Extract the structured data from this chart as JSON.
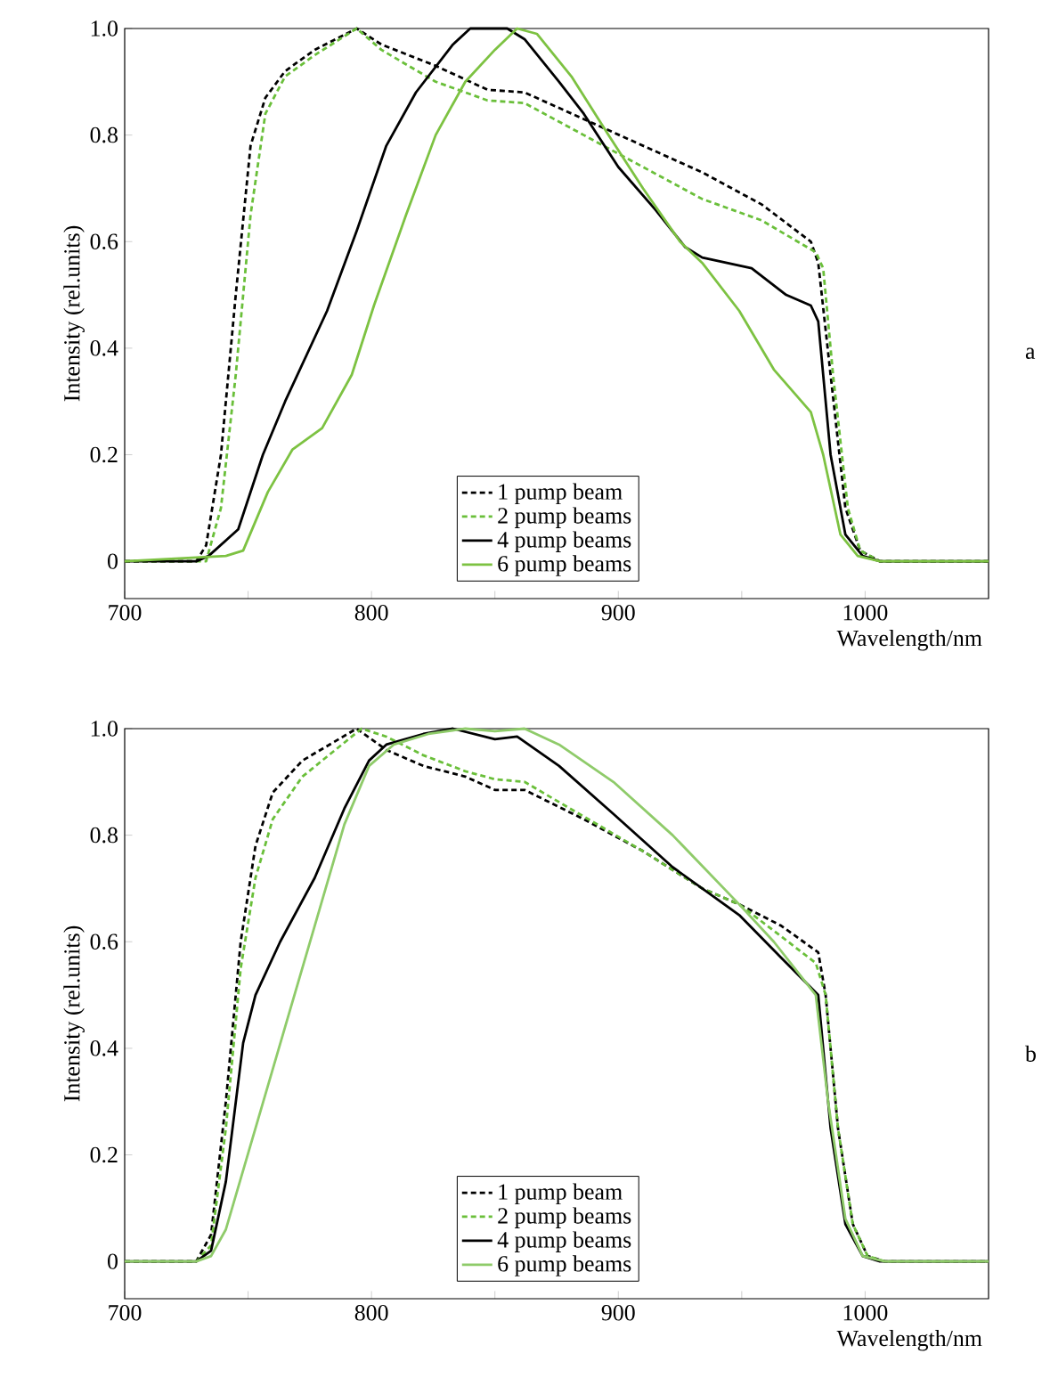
{
  "chart_data": [
    {
      "type": "line",
      "xlabel": "Wavelength/nm",
      "ylabel": "Intensity (rel.units)",
      "annotations": [
        "a"
      ],
      "xlim": [
        700,
        1050
      ],
      "ylim": [
        -0.07,
        1.0
      ],
      "xticks": [
        700,
        {
          "value": 750,
          "label": null
        },
        800,
        {
          "value": 850,
          "label": null
        },
        900,
        {
          "value": 950,
          "label": null
        },
        1000
      ],
      "yticks": [
        0,
        0.2,
        0.4,
        0.6,
        0.8,
        {
          "value": 1,
          "label": "1.0"
        }
      ],
      "legend": "bottom",
      "grid": false,
      "series": [
        {
          "name": "1 pump beam",
          "color": "#000000",
          "line_style": "dashed",
          "x": [
            700,
            729,
            733,
            739,
            745,
            751,
            757,
            765,
            777,
            794,
            804,
            826,
            847,
            862,
            886,
            910,
            934,
            958,
            978,
            981,
            986,
            992,
            998,
            1006,
            1050
          ],
          "values": [
            0,
            0,
            0.03,
            0.2,
            0.5,
            0.78,
            0.87,
            0.92,
            0.96,
            1.0,
            0.97,
            0.93,
            0.885,
            0.88,
            0.83,
            0.78,
            0.73,
            0.67,
            0.6,
            0.56,
            0.35,
            0.1,
            0.02,
            0,
            0
          ]
        },
        {
          "name": "2 pump beams",
          "color": "#6abf3a",
          "line_style": "dashed",
          "x": [
            700,
            733,
            739,
            745,
            751,
            757,
            765,
            777,
            794,
            804,
            826,
            847,
            862,
            886,
            910,
            934,
            958,
            980,
            983,
            987,
            993,
            998,
            1006,
            1050
          ],
          "values": [
            0,
            0,
            0.1,
            0.35,
            0.65,
            0.84,
            0.91,
            0.95,
            1.0,
            0.96,
            0.9,
            0.865,
            0.86,
            0.8,
            0.74,
            0.68,
            0.64,
            0.58,
            0.55,
            0.35,
            0.1,
            0.02,
            0,
            0
          ]
        },
        {
          "name": "4 pump beams",
          "color": "#000000",
          "line_style": "solid",
          "x": [
            700,
            729,
            734,
            746,
            756,
            765,
            782,
            794,
            806,
            818,
            833,
            840,
            855,
            862,
            876,
            886,
            900,
            915,
            927,
            934,
            954,
            968,
            978,
            981,
            986,
            992,
            999,
            1006,
            1050
          ],
          "values": [
            0,
            0,
            0.01,
            0.06,
            0.2,
            0.3,
            0.47,
            0.62,
            0.78,
            0.88,
            0.97,
            1.0,
            1.0,
            0.98,
            0.9,
            0.84,
            0.74,
            0.66,
            0.59,
            0.57,
            0.55,
            0.5,
            0.48,
            0.45,
            0.2,
            0.05,
            0.01,
            0,
            0
          ]
        },
        {
          "name": "6 pump beams",
          "color": "#7dc242",
          "line_style": "solid",
          "x": [
            700,
            741,
            748,
            758,
            768,
            780,
            792,
            801,
            814,
            826,
            838,
            850,
            859,
            867,
            881,
            896,
            910,
            925,
            934,
            949,
            963,
            978,
            983,
            990,
            997,
            1006,
            1050
          ],
          "values": [
            0,
            0.01,
            0.02,
            0.13,
            0.21,
            0.25,
            0.35,
            0.48,
            0.65,
            0.8,
            0.9,
            0.96,
            1.0,
            0.99,
            0.91,
            0.8,
            0.7,
            0.6,
            0.56,
            0.47,
            0.36,
            0.28,
            0.2,
            0.05,
            0.01,
            0,
            0
          ]
        }
      ]
    },
    {
      "type": "line",
      "xlabel": "Wavelength/nm",
      "ylabel": "Intensity (rel.units)",
      "annotations": [
        "b"
      ],
      "xlim": [
        700,
        1050
      ],
      "ylim": [
        -0.07,
        1.0
      ],
      "xticks": [
        700,
        {
          "value": 750,
          "label": null
        },
        800,
        {
          "value": 850,
          "label": null
        },
        900,
        {
          "value": 950,
          "label": null
        },
        1000
      ],
      "yticks": [
        0,
        0.2,
        0.4,
        0.6,
        0.8,
        {
          "value": 1,
          "label": "1.0"
        }
      ],
      "legend": "bottom",
      "grid": false,
      "series": [
        {
          "name": "1 pump beam",
          "color": "#000000",
          "line_style": "dashed",
          "x": [
            700,
            729,
            735,
            741,
            747,
            753,
            760,
            772,
            794,
            806,
            821,
            838,
            850,
            862,
            886,
            910,
            934,
            949,
            966,
            981,
            984,
            989,
            995,
            1001,
            1008,
            1050
          ],
          "values": [
            0,
            0,
            0.05,
            0.3,
            0.6,
            0.78,
            0.88,
            0.94,
            1.0,
            0.96,
            0.93,
            0.91,
            0.885,
            0.885,
            0.83,
            0.77,
            0.7,
            0.67,
            0.63,
            0.58,
            0.5,
            0.25,
            0.07,
            0.01,
            0,
            0
          ]
        },
        {
          "name": "2 pump beams",
          "color": "#6abf3a",
          "line_style": "dashed",
          "x": [
            700,
            729,
            735,
            741,
            747,
            753,
            760,
            772,
            796,
            806,
            821,
            838,
            850,
            862,
            886,
            910,
            934,
            949,
            966,
            980,
            984,
            989,
            995,
            1001,
            1008,
            1050
          ],
          "values": [
            0,
            0,
            0.03,
            0.25,
            0.55,
            0.72,
            0.83,
            0.91,
            1.0,
            0.985,
            0.95,
            0.92,
            0.905,
            0.9,
            0.835,
            0.77,
            0.7,
            0.67,
            0.61,
            0.56,
            0.5,
            0.25,
            0.07,
            0.01,
            0,
            0
          ]
        },
        {
          "name": "4 pump beams",
          "color": "#000000",
          "line_style": "solid",
          "x": [
            700,
            729,
            735,
            741,
            748,
            753,
            763,
            777,
            789,
            799,
            806,
            821,
            833,
            850,
            859,
            876,
            898,
            922,
            949,
            966,
            981,
            986,
            992,
            999,
            1006,
            1050
          ],
          "values": [
            0,
            0,
            0.02,
            0.15,
            0.41,
            0.5,
            0.6,
            0.72,
            0.85,
            0.94,
            0.97,
            0.99,
            1.0,
            0.98,
            0.985,
            0.93,
            0.84,
            0.74,
            0.65,
            0.57,
            0.5,
            0.25,
            0.07,
            0.01,
            0,
            0
          ]
        },
        {
          "name": "6 pump beams",
          "color": "#8fcb6a",
          "line_style": "solid",
          "x": [
            700,
            729,
            735,
            741,
            753,
            765,
            777,
            789,
            799,
            809,
            823,
            838,
            850,
            862,
            876,
            898,
            922,
            949,
            963,
            980,
            985,
            992,
            999,
            1008,
            1050
          ],
          "values": [
            0,
            0,
            0.01,
            0.06,
            0.25,
            0.44,
            0.63,
            0.82,
            0.93,
            0.97,
            0.99,
            1.0,
            0.995,
            1.0,
            0.97,
            0.9,
            0.8,
            0.67,
            0.6,
            0.5,
            0.3,
            0.08,
            0.01,
            0,
            0
          ]
        }
      ]
    }
  ]
}
